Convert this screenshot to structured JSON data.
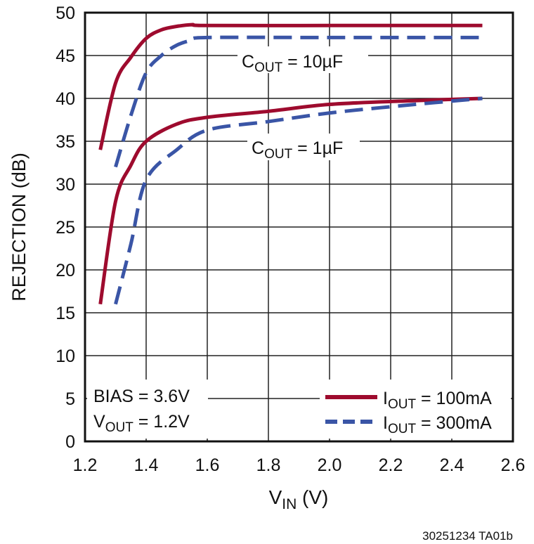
{
  "chart_data": {
    "type": "line",
    "xlabel": {
      "main": "V",
      "sub": "IN",
      "unit": " (V)"
    },
    "ylabel": "REJECTION (dB)",
    "xlim": [
      1.2,
      2.6
    ],
    "ylim": [
      0,
      50
    ],
    "xticks": [
      "1.2",
      "1.4",
      "1.6",
      "1.8",
      "2.0",
      "2.2",
      "2.4",
      "2.6"
    ],
    "yticks": [
      "0",
      "5",
      "10",
      "15",
      "20",
      "25",
      "30",
      "35",
      "40",
      "45",
      "50"
    ],
    "grid": true,
    "legend_placement": "bottom-right",
    "colors": {
      "iout_100mA": "#9E0B2E",
      "iout_300mA": "#3A55A6"
    },
    "legend": [
      {
        "main": "I",
        "sub": "OUT",
        "rest": " = 100mA",
        "style": "solid",
        "color": "#9E0B2E"
      },
      {
        "main": "I",
        "sub": "OUT",
        "rest": " = 300mA",
        "style": "dashed",
        "color": "#3A55A6"
      }
    ],
    "annotations": {
      "cout10": {
        "main": "C",
        "sub": "OUT",
        "rest": " = 10µF"
      },
      "cout1": {
        "main": "C",
        "sub": "OUT",
        "rest": " = 1µF"
      },
      "bias": "BIAS = 3.6V",
      "vout": {
        "main": "V",
        "sub": "OUT",
        "rest": " = 1.2V"
      }
    },
    "series": [
      {
        "group": "COUT = 10µF",
        "legend": "IOUT = 100mA",
        "style": "solid",
        "color": "#9E0B2E",
        "x": [
          1.25,
          1.3,
          1.35,
          1.4,
          1.45,
          1.5,
          1.55,
          1.6,
          2.0,
          2.5
        ],
        "y": [
          34,
          41.8,
          44.8,
          47,
          48,
          48.4,
          48.6,
          48.5,
          48.5,
          48.5
        ]
      },
      {
        "group": "COUT = 10µF",
        "legend": "IOUT = 300mA",
        "style": "dashed",
        "color": "#3A55A6",
        "x": [
          1.3,
          1.35,
          1.4,
          1.45,
          1.5,
          1.55,
          1.6,
          2.0,
          2.5
        ],
        "y": [
          32,
          38,
          43,
          45,
          46.2,
          46.8,
          47.1,
          47.1,
          47.1
        ]
      },
      {
        "group": "COUT = 1µF",
        "legend": "IOUT = 100mA",
        "style": "solid",
        "color": "#9E0B2E",
        "x": [
          1.25,
          1.3,
          1.35,
          1.4,
          1.5,
          1.6,
          1.8,
          2.0,
          2.25,
          2.5
        ],
        "y": [
          16,
          28,
          32.2,
          35,
          37,
          37.8,
          38.5,
          39.3,
          39.7,
          40
        ]
      },
      {
        "group": "COUT = 1µF",
        "legend": "IOUT = 300mA",
        "style": "dashed",
        "color": "#3A55A6",
        "x": [
          1.3,
          1.35,
          1.4,
          1.5,
          1.6,
          1.8,
          2.0,
          2.25,
          2.5
        ],
        "y": [
          16,
          23,
          30.5,
          34,
          36.3,
          37.3,
          38.3,
          39.2,
          40
        ]
      }
    ]
  },
  "footnote": "30251234 TA01b"
}
